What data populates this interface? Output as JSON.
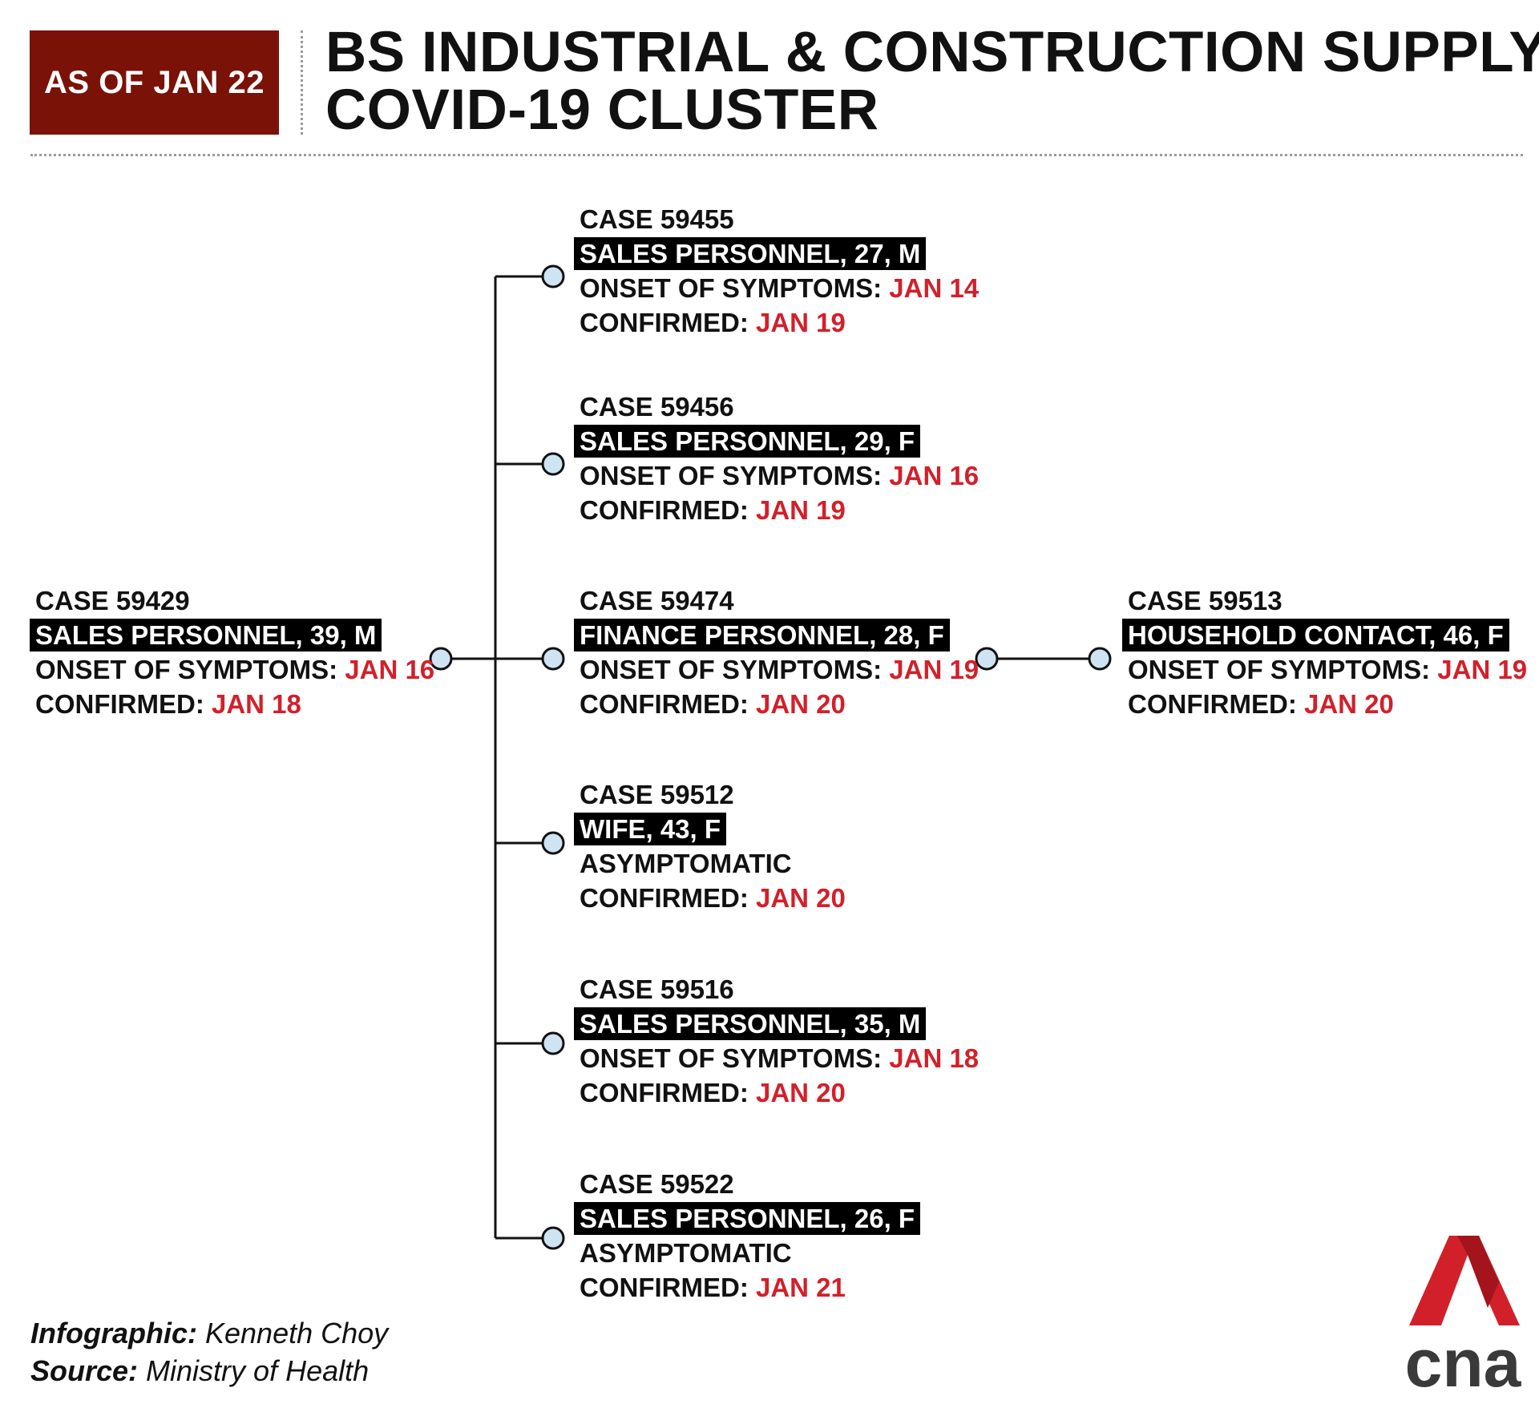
{
  "header": {
    "badge": "AS OF JAN 22",
    "title_line1": "BS INDUSTRIAL & CONSTRUCTION SUPPLY",
    "title_line2": "COVID-19 CLUSTER"
  },
  "colors": {
    "badge_bg": "#7a1208",
    "date_red": "#d2202a",
    "node_fill": "#cfe4f2",
    "tag_bg": "#000000",
    "logo_red": "#d2202a",
    "logo_text": "#3a3a3a"
  },
  "cases": {
    "c59429": {
      "case_label": "CASE ",
      "case_id": "59429",
      "tag": "SALES PERSONNEL, 39, M",
      "status_label": "ONSET OF SYMPTOMS: ",
      "status_date": "JAN 16",
      "confirmed_label": "CONFIRMED: ",
      "confirmed_date": "JAN 18"
    },
    "c59455": {
      "case_label": "CASE ",
      "case_id": "59455",
      "tag": "SALES PERSONNEL, 27, M",
      "status_label": "ONSET OF SYMPTOMS: ",
      "status_date": "JAN 14",
      "confirmed_label": "CONFIRMED: ",
      "confirmed_date": "JAN 19"
    },
    "c59456": {
      "case_label": "CASE ",
      "case_id": "59456",
      "tag": "SALES PERSONNEL, 29, F",
      "status_label": "ONSET OF SYMPTOMS: ",
      "status_date": "JAN 16",
      "confirmed_label": "CONFIRMED: ",
      "confirmed_date": "JAN 19"
    },
    "c59474": {
      "case_label": "CASE ",
      "case_id": "59474",
      "tag": "FINANCE PERSONNEL, 28, F",
      "status_label": "ONSET OF SYMPTOMS: ",
      "status_date": "JAN 19",
      "confirmed_label": "CONFIRMED: ",
      "confirmed_date": "JAN 20"
    },
    "c59512": {
      "case_label": "CASE ",
      "case_id": "59512",
      "tag": "WIFE, 43, F",
      "status_label": "ASYMPTOMATIC",
      "status_date": "",
      "confirmed_label": "CONFIRMED: ",
      "confirmed_date": "JAN 20"
    },
    "c59516": {
      "case_label": "CASE ",
      "case_id": "59516",
      "tag": "SALES PERSONNEL, 35, M",
      "status_label": "ONSET OF SYMPTOMS: ",
      "status_date": "JAN 18",
      "confirmed_label": "CONFIRMED: ",
      "confirmed_date": "JAN 20"
    },
    "c59522": {
      "case_label": "CASE ",
      "case_id": "59522",
      "tag": "SALES PERSONNEL, 26, F",
      "status_label": "ASYMPTOMATIC",
      "status_date": "",
      "confirmed_label": "CONFIRMED: ",
      "confirmed_date": "JAN 21"
    },
    "c59513": {
      "case_label": "CASE ",
      "case_id": "59513",
      "tag": "HOUSEHOLD CONTACT, 46, F",
      "status_label": "ONSET OF SYMPTOMS: ",
      "status_date": "JAN 19",
      "confirmed_label": "CONFIRMED: ",
      "confirmed_date": "JAN 20"
    }
  },
  "links": [
    [
      "c59429",
      "c59455"
    ],
    [
      "c59429",
      "c59456"
    ],
    [
      "c59429",
      "c59474"
    ],
    [
      "c59429",
      "c59512"
    ],
    [
      "c59429",
      "c59516"
    ],
    [
      "c59429",
      "c59522"
    ],
    [
      "c59474",
      "c59513"
    ]
  ],
  "credits": {
    "infographic_label": "Infographic:",
    "infographic_value": " Kenneth Choy",
    "source_label": "Source:",
    "source_value": " Ministry of Health"
  },
  "logo": {
    "text": "cna"
  }
}
